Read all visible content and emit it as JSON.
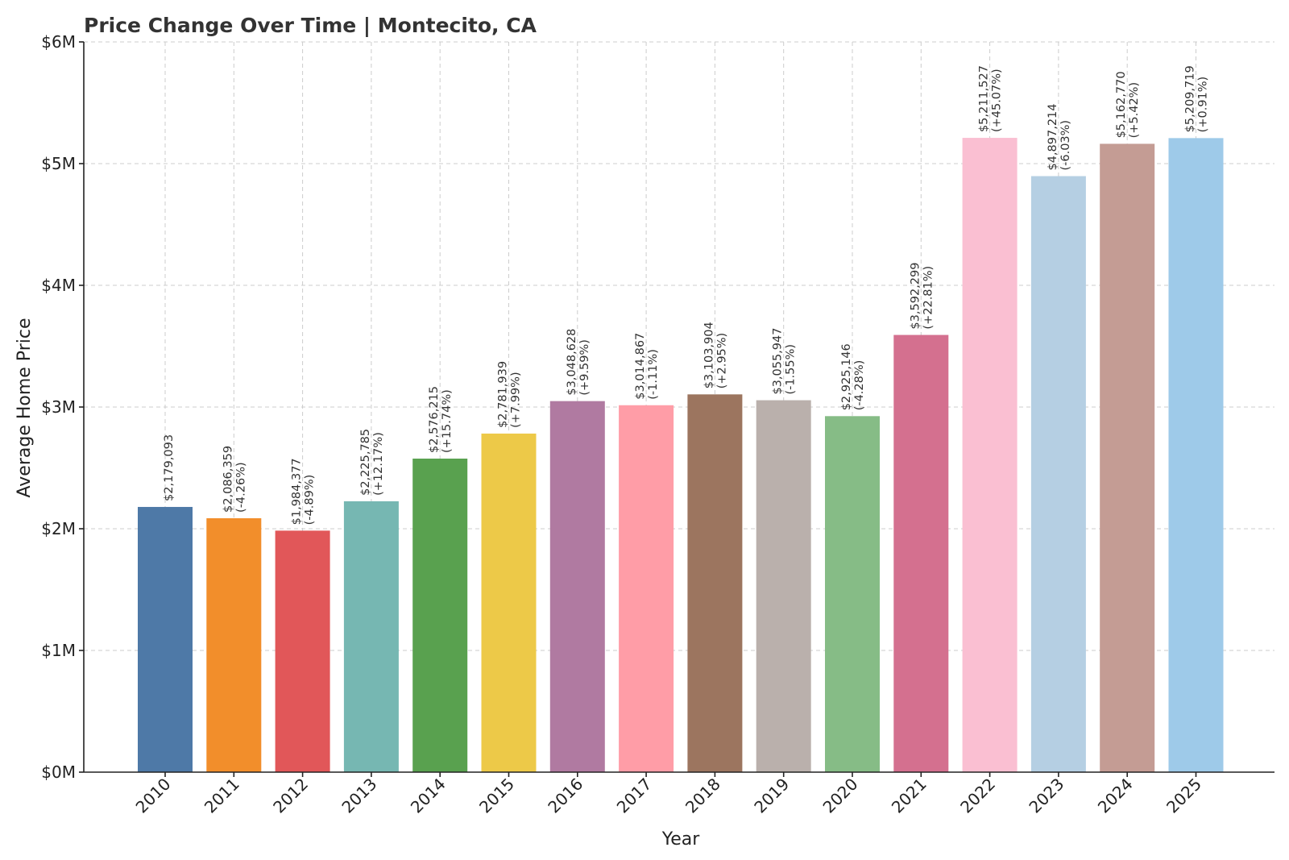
{
  "chart_data": {
    "type": "bar",
    "title": "Price Change Over Time | Montecito, CA",
    "xlabel": "Year",
    "ylabel": "Average Home Price",
    "ylim": [
      0,
      6000000
    ],
    "grid": true,
    "yticks": [
      {
        "value": 0,
        "label": "$0M"
      },
      {
        "value": 1000000,
        "label": "$1M"
      },
      {
        "value": 2000000,
        "label": "$2M"
      },
      {
        "value": 3000000,
        "label": "$3M"
      },
      {
        "value": 4000000,
        "label": "$4M"
      },
      {
        "value": 5000000,
        "label": "$5M"
      },
      {
        "value": 6000000,
        "label": "$6M"
      }
    ],
    "categories": [
      "2010",
      "2011",
      "2012",
      "2013",
      "2014",
      "2015",
      "2016",
      "2017",
      "2018",
      "2019",
      "2020",
      "2021",
      "2022",
      "2023",
      "2024",
      "2025"
    ],
    "values": [
      2179093,
      2086359,
      1984377,
      2225785,
      2576215,
      2781939,
      3048628,
      3014867,
      3103904,
      3055947,
      2925146,
      3592299,
      5211527,
      4897214,
      5162770,
      5209719
    ],
    "price_labels": [
      "$2,179,093",
      "$2,086,359",
      "$1,984,377",
      "$2,225,785",
      "$2,576,215",
      "$2,781,939",
      "$3,048,628",
      "$3,014,867",
      "$3,103,904",
      "$3,055,947",
      "$2,925,146",
      "$3,592,299",
      "$5,211,527",
      "$4,897,214",
      "$5,162,770",
      "$5,209,719"
    ],
    "change_labels": [
      "",
      "(-4.26%)",
      "(-4.89%)",
      "(+12.17%)",
      "(+15.74%)",
      "(+7.99%)",
      "(+9.59%)",
      "(-1.11%)",
      "(+2.95%)",
      "(-1.55%)",
      "(-4.28%)",
      "(+22.81%)",
      "(+45.07%)",
      "(-6.03%)",
      "(+5.42%)",
      "(+0.91%)"
    ],
    "colors": [
      "#4e79a7",
      "#f28e2b",
      "#e15759",
      "#76b7b2",
      "#59a14f",
      "#edc948",
      "#b07aa1",
      "#ff9da7",
      "#9c755f",
      "#bab0ac",
      "#86bc86",
      "#d4708f",
      "#fabfd2",
      "#b5cfe3",
      "#c49c94",
      "#9ecae9"
    ]
  }
}
